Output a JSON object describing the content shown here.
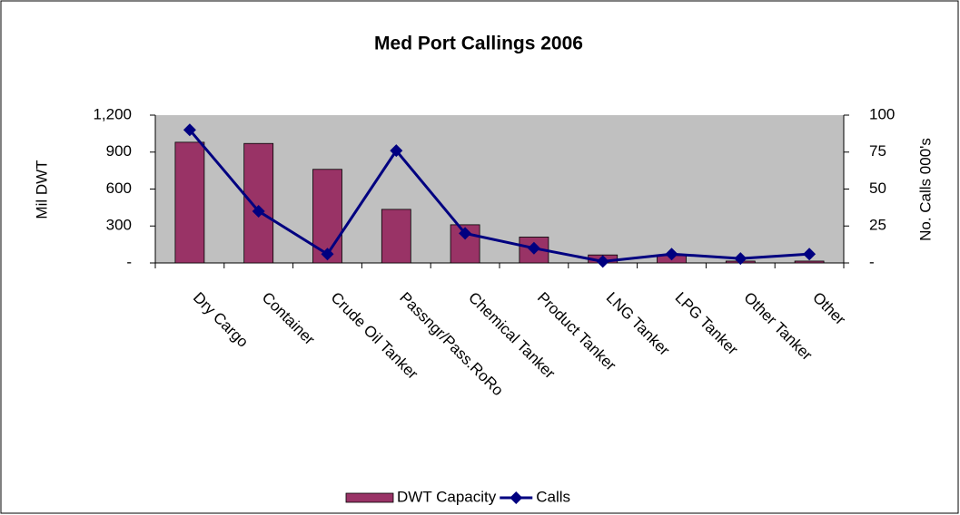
{
  "chart_data": {
    "type": "bar-line",
    "title": "Med Port Callings 2006",
    "ylabel": "Mil DWT",
    "y2label": "No. Calls 000's",
    "categories": [
      "Dry Cargo",
      "Container",
      "Crude Oil Tanker",
      "Passngr/Pass.RoRo",
      "Chemical Tanker",
      "Product Tanker",
      "LNG Tanker",
      "LPG Tanker",
      "Other Tanker",
      "Other"
    ],
    "series": [
      {
        "name": "DWT Capacity",
        "type": "bar",
        "color": "#993366",
        "values": [
          980,
          970,
          760,
          435,
          310,
          210,
          65,
          60,
          15,
          15
        ]
      },
      {
        "name": "Calls",
        "type": "line",
        "axis": "y2",
        "color": "#000080",
        "values": [
          90,
          35,
          6,
          76,
          20,
          10,
          1,
          6,
          3,
          6
        ]
      }
    ],
    "ylim": [
      0,
      1200
    ],
    "yticks": [
      {
        "value": 0,
        "label": "-"
      },
      300,
      600,
      900,
      {
        "value": 1200,
        "label": "1,200"
      }
    ],
    "y2lim": [
      0,
      100
    ],
    "y2ticks": [
      {
        "value": 0,
        "label": "-"
      },
      25,
      50,
      75,
      100
    ],
    "grid": false,
    "legend": "bottom"
  }
}
